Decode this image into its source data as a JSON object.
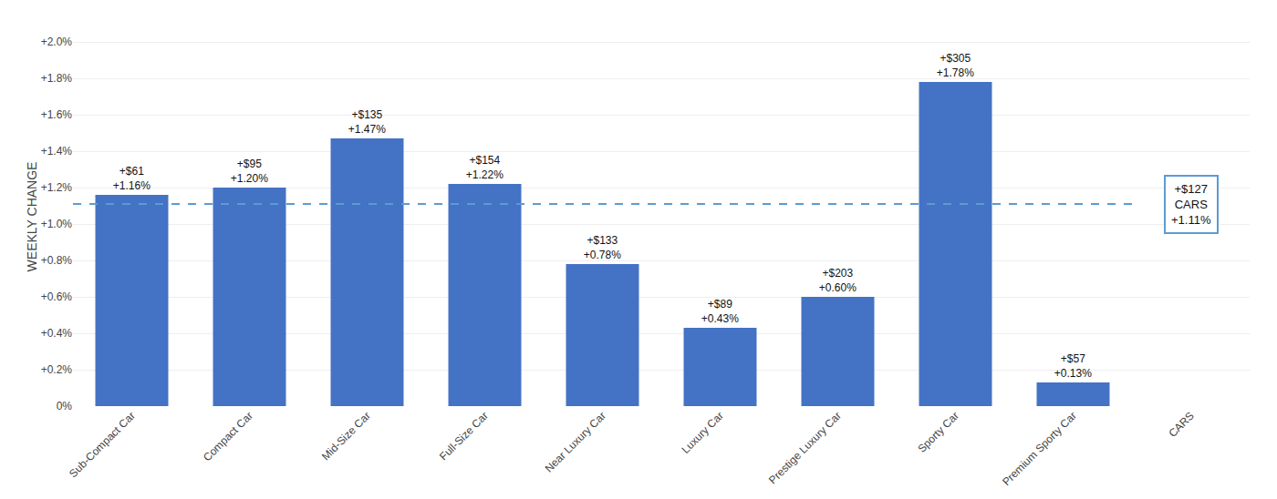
{
  "chart_data": {
    "type": "bar",
    "categories": [
      "Sub-Compact Car",
      "Compact Car",
      "Mid-Size Car",
      "Full-Size Car",
      "Near Luxury Car",
      "Luxury Car",
      "Prestige Luxury Car",
      "Sporty Car",
      "Premium Sporty Car",
      "CARS"
    ],
    "values": [
      1.16,
      1.2,
      1.47,
      1.22,
      0.78,
      0.43,
      0.6,
      1.78,
      0.13,
      null
    ],
    "value_labels": [
      "+1.16%",
      "+1.20%",
      "+1.47%",
      "+1.22%",
      "+0.78%",
      "+0.43%",
      "+0.60%",
      "+1.78%",
      "+0.13%",
      null
    ],
    "dollar_labels": [
      "+$61",
      "+$95",
      "+$135",
      "+$154",
      "+$133",
      "+$89",
      "+$203",
      "+$305",
      "+$57",
      null
    ],
    "data_labels": true,
    "color": "#4472c4",
    "ylabel": "WEEKLY CHANGE",
    "ylim": [
      0,
      2.08
    ],
    "yticks": [
      {
        "value": 0.0,
        "label": "0%"
      },
      {
        "value": 0.2,
        "label": "+0.2%"
      },
      {
        "value": 0.4,
        "label": "+0.4%"
      },
      {
        "value": 0.6,
        "label": "+0.6%"
      },
      {
        "value": 0.8,
        "label": "+0.8%"
      },
      {
        "value": 1.0,
        "label": "+1.0%"
      },
      {
        "value": 1.2,
        "label": "+1.2%"
      },
      {
        "value": 1.4,
        "label": "+1.4%"
      },
      {
        "value": 1.6,
        "label": "+1.6%"
      },
      {
        "value": 1.8,
        "label": "+1.8%"
      },
      {
        "value": 2.0,
        "label": "+2.0%"
      }
    ],
    "grid": true,
    "reference_line": {
      "value": 1.11,
      "color": "#5b9bd5",
      "line_style": "dash",
      "category": "CARS",
      "labels": [
        "+$127",
        "CARS",
        "+1.11%"
      ]
    }
  }
}
